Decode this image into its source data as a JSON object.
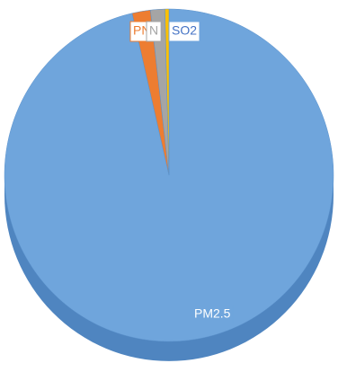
{
  "chart_data": {
    "type": "pie",
    "categories": [
      "PM2.5",
      "PN",
      "N",
      "SO2"
    ],
    "values": [
      96.4,
      1.8,
      1.4,
      0.4
    ],
    "colors": [
      "#6fa5dc",
      "#ed7d31",
      "#a5a5a5",
      "#ffc000"
    ]
  }
}
